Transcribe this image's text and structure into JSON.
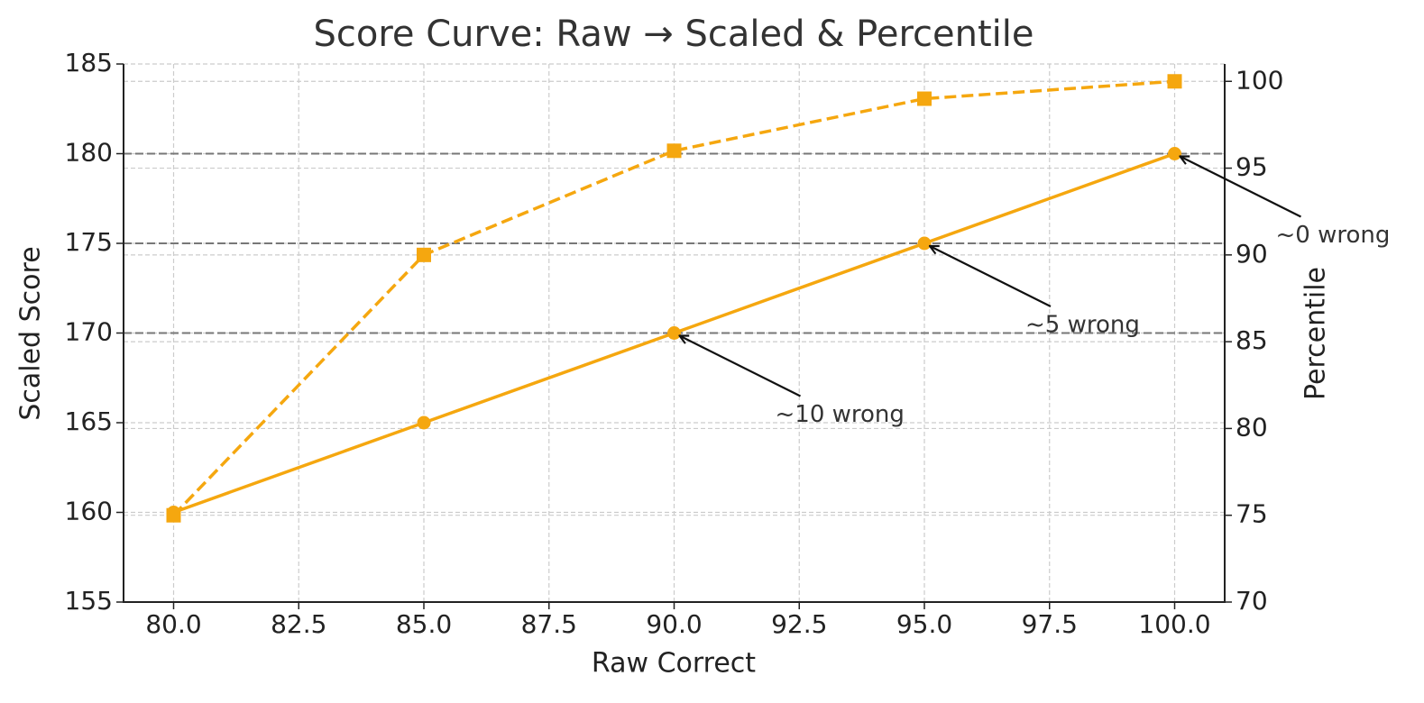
{
  "chart_data": {
    "type": "line",
    "title": "Score Curve: Raw → Scaled & Percentile",
    "xlabel": "Raw Correct",
    "ylabel": "Scaled Score",
    "y2label": "Percentile",
    "x": [
      80,
      85,
      90,
      95,
      100
    ],
    "series": [
      {
        "color": "#f5a70f",
        "values": [
          160,
          165,
          170,
          175,
          180
        ],
        "marker": "circle",
        "dash": false
      },
      {
        "color": "#f5a70f",
        "values": [
          75,
          90,
          96,
          99,
          100
        ],
        "marker": "square",
        "dash": true,
        "axis": "y2"
      }
    ],
    "xlim": [
      79,
      101
    ],
    "xticks": [
      {
        "value": 80,
        "label": "80.0"
      },
      82.5,
      {
        "value": 85,
        "label": "85.0"
      },
      87.5,
      {
        "value": 90,
        "label": "90.0"
      },
      92.5,
      {
        "value": 95,
        "label": "95.0"
      },
      97.5,
      {
        "value": 100,
        "label": "100.0"
      }
    ],
    "ylim": [
      155,
      185
    ],
    "yticks": [
      155,
      160,
      165,
      170,
      175,
      180,
      185
    ],
    "y2lim": [
      70,
      101
    ],
    "y2ticks": [
      70,
      75,
      80,
      85,
      90,
      95,
      100
    ],
    "hlines": [
      170,
      175,
      180
    ],
    "annotations": [
      {
        "text": "~10 wrong",
        "x": 90,
        "y": 170
      },
      {
        "text": "~5 wrong",
        "x": 95,
        "y": 175
      },
      {
        "text": "~0 wrong",
        "x": 100,
        "y": 180
      }
    ],
    "grid": true
  }
}
